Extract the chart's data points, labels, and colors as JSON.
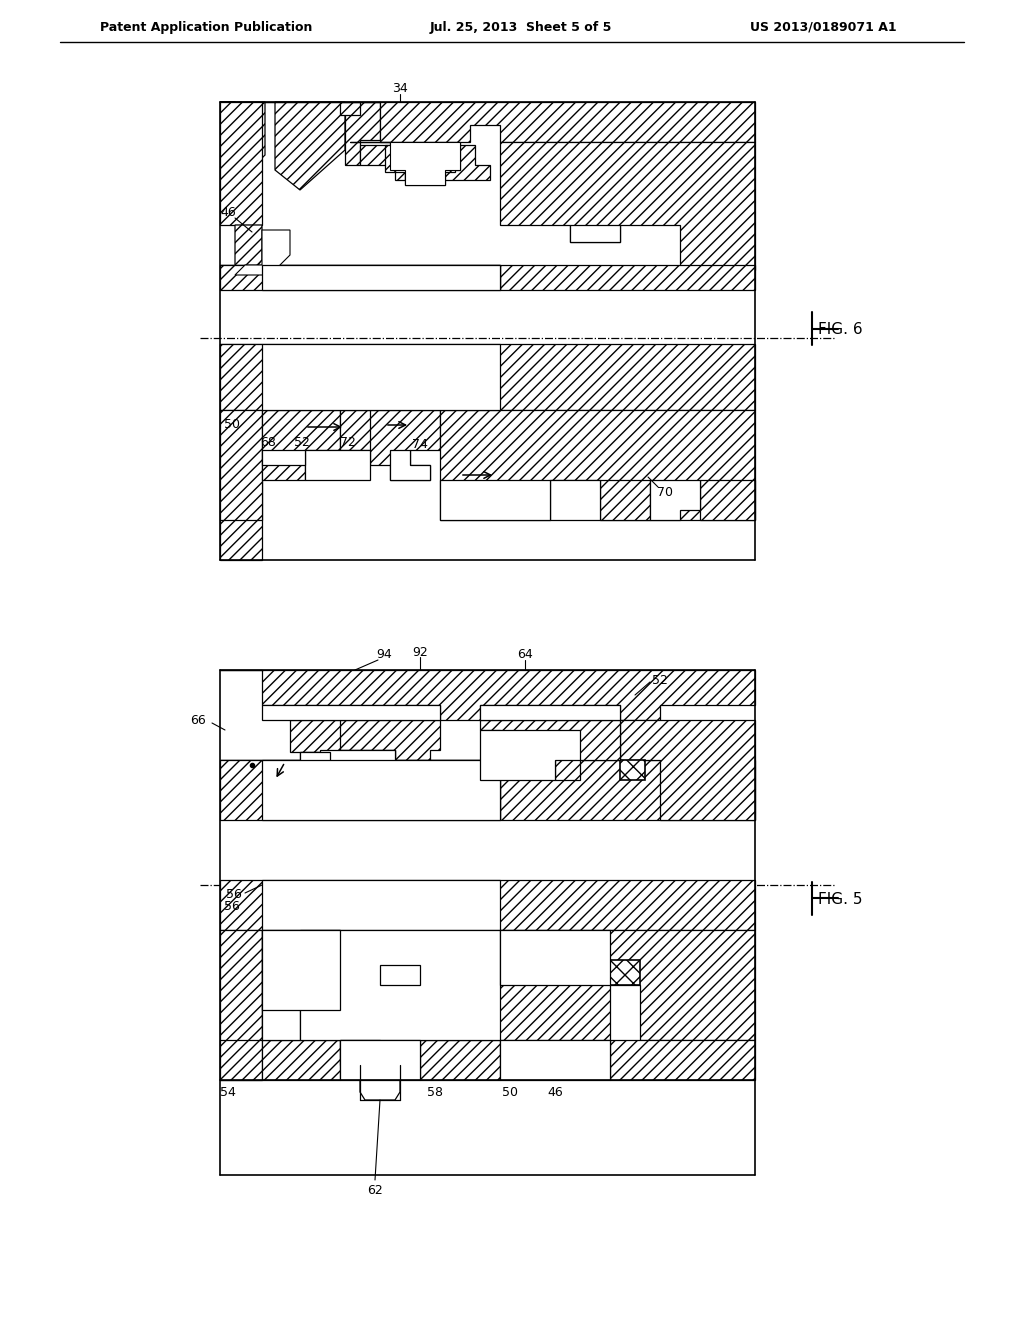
{
  "background_color": "#ffffff",
  "header_left": "Patent Application Publication",
  "header_center": "Jul. 25, 2013  Sheet 5 of 5",
  "header_right": "US 2013/0189071 A1",
  "fig6_label": "FIG. 6",
  "fig5_label": "FIG. 5",
  "line_color": "#000000",
  "hatch_pattern": "///",
  "gray_light": "#d8d8d8",
  "gray_med": "#b0b0b0"
}
